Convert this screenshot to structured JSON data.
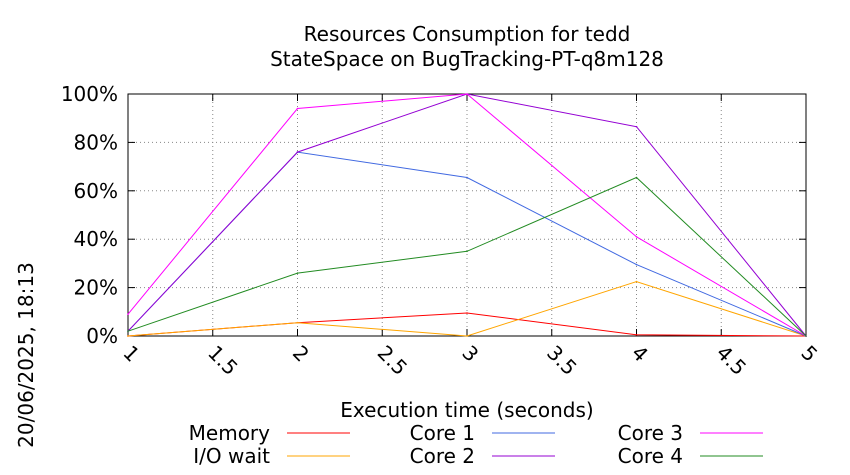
{
  "chart_data": {
    "type": "line",
    "title_lines": [
      "Resources Consumption for tedd",
      "StateSpace on BugTracking-PT-q8m128"
    ],
    "xlabel": "Execution time (seconds)",
    "ylabel": "",
    "side_label": "20/06/2025, 18:13",
    "xlim": [
      1,
      5
    ],
    "ylim": [
      0,
      100
    ],
    "x_ticks": [
      1,
      1.5,
      2,
      2.5,
      3,
      3.5,
      4,
      4.5,
      5
    ],
    "x_tick_labels": [
      "1",
      "1.5",
      "2",
      "2.5",
      "3",
      "3.5",
      "4",
      "4.5",
      "5"
    ],
    "y_ticks": [
      0,
      20,
      40,
      60,
      80,
      100
    ],
    "y_tick_labels": [
      "0%",
      "20%",
      "40%",
      "60%",
      "80%",
      "100%"
    ],
    "grid": true,
    "legend_position": "bottom",
    "series": [
      {
        "name": "Memory",
        "color": "#ff0000",
        "x": [
          1,
          2,
          3,
          4,
          5
        ],
        "y": [
          0,
          5.5,
          9.5,
          0.5,
          0
        ]
      },
      {
        "name": "I/O wait",
        "color": "#ffa500",
        "x": [
          1,
          2,
          3,
          4,
          5
        ],
        "y": [
          0,
          5.5,
          0,
          22.5,
          0
        ]
      },
      {
        "name": "Core 1",
        "color": "#4169e1",
        "x": [
          1,
          2,
          3,
          4,
          5
        ],
        "y": [
          2,
          76,
          65.5,
          29.5,
          0
        ]
      },
      {
        "name": "Core 2",
        "color": "#9400d3",
        "x": [
          1,
          2,
          3,
          4,
          5
        ],
        "y": [
          2,
          76,
          100,
          86.5,
          0
        ]
      },
      {
        "name": "Core 3",
        "color": "#ff00ff",
        "x": [
          1,
          2,
          3,
          4,
          5
        ],
        "y": [
          9,
          94,
          100,
          41,
          0
        ]
      },
      {
        "name": "Core 4",
        "color": "#228b22",
        "x": [
          1,
          2,
          3,
          4,
          5
        ],
        "y": [
          2,
          26,
          35,
          65.5,
          0
        ]
      }
    ]
  }
}
